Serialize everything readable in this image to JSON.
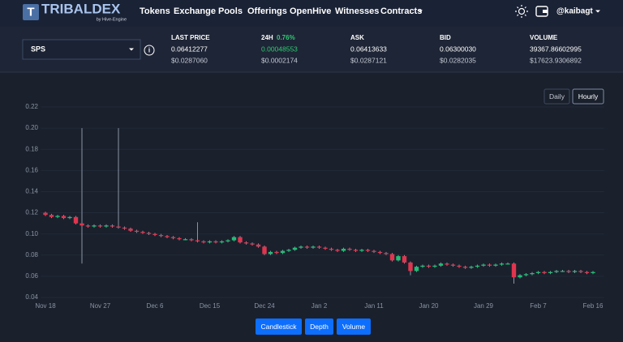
{
  "header": {
    "logo": "TRIBALDEX",
    "logo_sub": "by Hive-Engine",
    "nav": [
      "Tokens",
      "Exchange",
      "Pools",
      "Offerings",
      "OpenHive",
      "Witnesses",
      "Contracts"
    ],
    "user": "@kaibagt"
  },
  "market": {
    "token": "SPS",
    "stats": [
      {
        "label": "LAST PRICE",
        "value": "0.06412277",
        "usd": "$0.0287060"
      },
      {
        "label": "24H",
        "change": "0.76%",
        "value": "0.00048553",
        "usd": "$0.0002174"
      },
      {
        "label": "ASK",
        "value": "0.06413633",
        "usd": "$0.0287121"
      },
      {
        "label": "BID",
        "value": "0.06300030",
        "usd": "$0.0282035"
      },
      {
        "label": "VOLUME",
        "value": "39367.86602995",
        "usd": "$17623.9306892"
      }
    ]
  },
  "interval_buttons": [
    "Daily",
    "Hourly"
  ],
  "view_buttons": [
    "Candlestick",
    "Depth",
    "Volume"
  ],
  "chart_data": {
    "type": "candlestick",
    "x": [
      "Nov 18",
      "Nov 19",
      "Nov 20",
      "Nov 21",
      "Nov 22",
      "Nov 23",
      "Nov 24",
      "Nov 25",
      "Nov 26",
      "Nov 27",
      "Nov 28",
      "Nov 29",
      "Nov 30",
      "Dec 1",
      "Dec 2",
      "Dec 3",
      "Dec 4",
      "Dec 5",
      "Dec 6",
      "Dec 7",
      "Dec 8",
      "Dec 9",
      "Dec 10",
      "Dec 11",
      "Dec 12",
      "Dec 13",
      "Dec 14",
      "Dec 15",
      "Dec 16",
      "Dec 17",
      "Dec 18",
      "Dec 19",
      "Dec 20",
      "Dec 21",
      "Dec 22",
      "Dec 23",
      "Dec 24",
      "Dec 25",
      "Dec 26",
      "Dec 27",
      "Dec 28",
      "Dec 29",
      "Dec 30",
      "Dec 31",
      "Jan 1",
      "Jan 2",
      "Jan 3",
      "Jan 4",
      "Jan 5",
      "Jan 6",
      "Jan 7",
      "Jan 8",
      "Jan 9",
      "Jan 10",
      "Jan 11",
      "Jan 12",
      "Jan 13",
      "Jan 14",
      "Jan 15",
      "Jan 16",
      "Jan 17",
      "Jan 18",
      "Jan 19",
      "Jan 20",
      "Jan 21",
      "Jan 22",
      "Jan 23",
      "Jan 24",
      "Jan 25",
      "Jan 26",
      "Jan 27",
      "Jan 28",
      "Jan 29",
      "Jan 30",
      "Jan 31",
      "Feb 1",
      "Feb 2",
      "Feb 3",
      "Feb 4",
      "Feb 5",
      "Feb 6",
      "Feb 7",
      "Feb 8",
      "Feb 9",
      "Feb 10",
      "Feb 11",
      "Feb 12",
      "Feb 13",
      "Feb 14",
      "Feb 15",
      "Feb 16"
    ],
    "open": [
      0.12,
      0.118,
      0.116,
      0.117,
      0.115,
      0.116,
      0.11,
      0.108,
      0.107,
      0.108,
      0.107,
      0.108,
      0.107,
      0.106,
      0.105,
      0.103,
      0.102,
      0.101,
      0.1,
      0.099,
      0.098,
      0.097,
      0.096,
      0.095,
      0.095,
      0.094,
      0.093,
      0.092,
      0.093,
      0.092,
      0.093,
      0.094,
      0.097,
      0.092,
      0.091,
      0.09,
      0.088,
      0.081,
      0.083,
      0.082,
      0.084,
      0.085,
      0.087,
      0.088,
      0.087,
      0.088,
      0.087,
      0.086,
      0.085,
      0.084,
      0.086,
      0.085,
      0.084,
      0.085,
      0.084,
      0.083,
      0.082,
      0.081,
      0.075,
      0.079,
      0.073,
      0.065,
      0.069,
      0.07,
      0.069,
      0.07,
      0.072,
      0.071,
      0.07,
      0.069,
      0.068,
      0.069,
      0.07,
      0.071,
      0.07,
      0.071,
      0.072,
      0.072,
      0.059,
      0.061,
      0.062,
      0.063,
      0.064,
      0.063,
      0.064,
      0.065,
      0.065,
      0.064,
      0.065,
      0.064,
      0.063
    ],
    "high": [
      0.121,
      0.119,
      0.118,
      0.118,
      0.117,
      0.117,
      0.2,
      0.109,
      0.109,
      0.109,
      0.109,
      0.109,
      0.2,
      0.107,
      0.106,
      0.104,
      0.103,
      0.102,
      0.101,
      0.1,
      0.099,
      0.098,
      0.097,
      0.096,
      0.096,
      0.111,
      0.094,
      0.094,
      0.094,
      0.094,
      0.095,
      0.098,
      0.098,
      0.093,
      0.092,
      0.091,
      0.089,
      0.084,
      0.084,
      0.085,
      0.086,
      0.088,
      0.089,
      0.089,
      0.089,
      0.089,
      0.088,
      0.087,
      0.086,
      0.087,
      0.087,
      0.086,
      0.086,
      0.086,
      0.085,
      0.084,
      0.083,
      0.082,
      0.08,
      0.08,
      0.074,
      0.07,
      0.071,
      0.071,
      0.071,
      0.073,
      0.073,
      0.072,
      0.071,
      0.07,
      0.07,
      0.071,
      0.072,
      0.072,
      0.072,
      0.073,
      0.073,
      0.073,
      0.062,
      0.063,
      0.064,
      0.065,
      0.065,
      0.065,
      0.066,
      0.066,
      0.066,
      0.066,
      0.066,
      0.065,
      0.065
    ],
    "low": [
      0.117,
      0.115,
      0.115,
      0.114,
      0.114,
      0.109,
      0.072,
      0.106,
      0.106,
      0.106,
      0.106,
      0.106,
      0.105,
      0.104,
      0.102,
      0.101,
      0.1,
      0.099,
      0.098,
      0.097,
      0.096,
      0.095,
      0.094,
      0.094,
      0.093,
      0.092,
      0.091,
      0.091,
      0.091,
      0.091,
      0.092,
      0.093,
      0.091,
      0.09,
      0.089,
      0.087,
      0.08,
      0.08,
      0.081,
      0.081,
      0.083,
      0.084,
      0.086,
      0.086,
      0.086,
      0.086,
      0.085,
      0.084,
      0.083,
      0.083,
      0.084,
      0.083,
      0.083,
      0.083,
      0.082,
      0.081,
      0.08,
      0.074,
      0.074,
      0.072,
      0.061,
      0.064,
      0.068,
      0.068,
      0.068,
      0.069,
      0.07,
      0.069,
      0.068,
      0.067,
      0.067,
      0.068,
      0.069,
      0.069,
      0.069,
      0.07,
      0.071,
      0.053,
      0.058,
      0.06,
      0.061,
      0.062,
      0.062,
      0.062,
      0.063,
      0.064,
      0.063,
      0.063,
      0.063,
      0.062,
      0.062
    ],
    "close": [
      0.118,
      0.116,
      0.117,
      0.115,
      0.116,
      0.11,
      0.108,
      0.107,
      0.108,
      0.107,
      0.108,
      0.107,
      0.106,
      0.105,
      0.103,
      0.102,
      0.101,
      0.1,
      0.099,
      0.098,
      0.097,
      0.096,
      0.095,
      0.095,
      0.094,
      0.093,
      0.092,
      0.093,
      0.092,
      0.093,
      0.094,
      0.097,
      0.092,
      0.091,
      0.09,
      0.088,
      0.081,
      0.083,
      0.082,
      0.084,
      0.085,
      0.087,
      0.088,
      0.087,
      0.088,
      0.087,
      0.086,
      0.085,
      0.084,
      0.086,
      0.085,
      0.084,
      0.085,
      0.084,
      0.083,
      0.082,
      0.081,
      0.075,
      0.079,
      0.073,
      0.065,
      0.069,
      0.07,
      0.069,
      0.07,
      0.072,
      0.071,
      0.07,
      0.069,
      0.068,
      0.069,
      0.07,
      0.071,
      0.07,
      0.071,
      0.072,
      0.072,
      0.059,
      0.061,
      0.062,
      0.063,
      0.064,
      0.063,
      0.064,
      0.065,
      0.065,
      0.064,
      0.065,
      0.064,
      0.063,
      0.064
    ],
    "up_color": "#1fbf75",
    "down_color": "#e0354f",
    "xticks": [
      "Nov 18",
      "Nov 27",
      "Dec 6",
      "Dec 15",
      "Dec 24",
      "Jan 2",
      "Jan 11",
      "Jan 20",
      "Jan 29",
      "Feb 7",
      "Feb 16"
    ],
    "ylim": [
      0.04,
      0.22
    ],
    "yticks": [
      0.04,
      0.06,
      0.08,
      {
        "value": 0.1,
        "label": "0.10"
      },
      0.12,
      0.14,
      0.16,
      0.18,
      {
        "value": 0.2,
        "label": "0.20"
      },
      0.22
    ],
    "grid": true
  }
}
